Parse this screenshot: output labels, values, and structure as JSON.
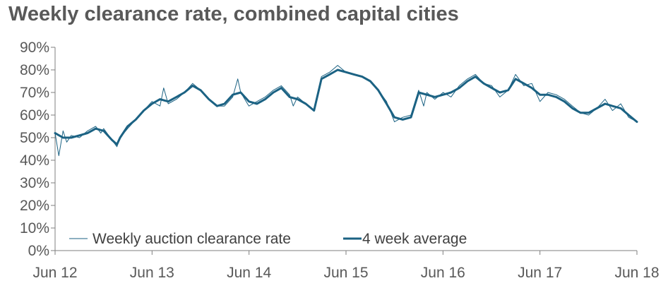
{
  "title": "Weekly clearance rate, combined capital cities",
  "colors": {
    "series": "#1b6283",
    "axis": "#7f7f7f",
    "text": "#595959"
  },
  "chart_data": {
    "type": "line",
    "title": "Weekly clearance rate, combined capital cities",
    "xlabel": "",
    "ylabel": "",
    "ylim": [
      0,
      90
    ],
    "y_ticks": [
      "0%",
      "10%",
      "20%",
      "30%",
      "40%",
      "50%",
      "60%",
      "70%",
      "80%",
      "90%"
    ],
    "x_ticks": [
      "Jun 12",
      "Jun 13",
      "Jun 14",
      "Jun 15",
      "Jun 16",
      "Jun 17",
      "Jun 18"
    ],
    "x_range": [
      "2012-06",
      "2018-06"
    ],
    "grid": false,
    "legend": "bottom-left",
    "series": [
      {
        "name": "Weekly auction clearance rate",
        "style": "thin",
        "points": [
          [
            "2012-06",
            52
          ],
          [
            "2012-06-15",
            42
          ],
          [
            "2012-07",
            53
          ],
          [
            "2012-07-15",
            48
          ],
          [
            "2012-08",
            51
          ],
          [
            "2012-09",
            50
          ],
          [
            "2012-10",
            53
          ],
          [
            "2012-11",
            55
          ],
          [
            "2012-11-20",
            52
          ],
          [
            "2012-12",
            54
          ],
          [
            "2013-01",
            49
          ],
          [
            "2013-01-20",
            46
          ],
          [
            "2013-02",
            50
          ],
          [
            "2013-03",
            54
          ],
          [
            "2013-04",
            58
          ],
          [
            "2013-05",
            62
          ],
          [
            "2013-06",
            66
          ],
          [
            "2013-07",
            64
          ],
          [
            "2013-07-15",
            72
          ],
          [
            "2013-08",
            65
          ],
          [
            "2013-09",
            67
          ],
          [
            "2013-10",
            70
          ],
          [
            "2013-11",
            74
          ],
          [
            "2013-12",
            71
          ],
          [
            "2014-01",
            67
          ],
          [
            "2014-02",
            64
          ],
          [
            "2014-03",
            64
          ],
          [
            "2014-04",
            68
          ],
          [
            "2014-04-20",
            76
          ],
          [
            "2014-05",
            70
          ],
          [
            "2014-06",
            64
          ],
          [
            "2014-07",
            66
          ],
          [
            "2014-08",
            68
          ],
          [
            "2014-09",
            71
          ],
          [
            "2014-10",
            73
          ],
          [
            "2014-11",
            69
          ],
          [
            "2014-11-15",
            64
          ],
          [
            "2014-12",
            68
          ],
          [
            "2015-01",
            65
          ],
          [
            "2015-02",
            62
          ],
          [
            "2015-03",
            77
          ],
          [
            "2015-04",
            79
          ],
          [
            "2015-05",
            82
          ],
          [
            "2015-06",
            79
          ],
          [
            "2015-07",
            78
          ],
          [
            "2015-08",
            77
          ],
          [
            "2015-09",
            75
          ],
          [
            "2015-10",
            71
          ],
          [
            "2015-11",
            66
          ],
          [
            "2015-12",
            57
          ],
          [
            "2016-01",
            59
          ],
          [
            "2016-02",
            60
          ],
          [
            "2016-03",
            71
          ],
          [
            "2016-03-20",
            64
          ],
          [
            "2016-04",
            70
          ],
          [
            "2016-05",
            67
          ],
          [
            "2016-06",
            70
          ],
          [
            "2016-07",
            68
          ],
          [
            "2016-08",
            73
          ],
          [
            "2016-09",
            76
          ],
          [
            "2016-10",
            78
          ],
          [
            "2016-11",
            74
          ],
          [
            "2016-12",
            73
          ],
          [
            "2017-01",
            68
          ],
          [
            "2017-02",
            71
          ],
          [
            "2017-03",
            78
          ],
          [
            "2017-04",
            73
          ],
          [
            "2017-05",
            74
          ],
          [
            "2017-06",
            66
          ],
          [
            "2017-07",
            70
          ],
          [
            "2017-08",
            69
          ],
          [
            "2017-09",
            67
          ],
          [
            "2017-10",
            64
          ],
          [
            "2017-11",
            61
          ],
          [
            "2017-12",
            60
          ],
          [
            "2018-01",
            63
          ],
          [
            "2018-02",
            67
          ],
          [
            "2018-03",
            62
          ],
          [
            "2018-04",
            65
          ],
          [
            "2018-05",
            59
          ],
          [
            "2018-06",
            57
          ]
        ]
      },
      {
        "name": "4 week average",
        "style": "thick",
        "points": [
          [
            "2012-06",
            52
          ],
          [
            "2012-07",
            50
          ],
          [
            "2012-08",
            50
          ],
          [
            "2012-09",
            51
          ],
          [
            "2012-10",
            52
          ],
          [
            "2012-11",
            54
          ],
          [
            "2012-12",
            53
          ],
          [
            "2013-01",
            49
          ],
          [
            "2013-01-20",
            47
          ],
          [
            "2013-02",
            50
          ],
          [
            "2013-03",
            55
          ],
          [
            "2013-04",
            58
          ],
          [
            "2013-05",
            62
          ],
          [
            "2013-06",
            65
          ],
          [
            "2013-07",
            67
          ],
          [
            "2013-08",
            66
          ],
          [
            "2013-09",
            68
          ],
          [
            "2013-10",
            70
          ],
          [
            "2013-11",
            73
          ],
          [
            "2013-12",
            71
          ],
          [
            "2014-01",
            67
          ],
          [
            "2014-02",
            64
          ],
          [
            "2014-03",
            65
          ],
          [
            "2014-04",
            69
          ],
          [
            "2014-05",
            70
          ],
          [
            "2014-06",
            66
          ],
          [
            "2014-07",
            65
          ],
          [
            "2014-08",
            67
          ],
          [
            "2014-09",
            70
          ],
          [
            "2014-10",
            72
          ],
          [
            "2014-11",
            68
          ],
          [
            "2014-12",
            67
          ],
          [
            "2015-01",
            65
          ],
          [
            "2015-02",
            62
          ],
          [
            "2015-03",
            76
          ],
          [
            "2015-04",
            78
          ],
          [
            "2015-05",
            80
          ],
          [
            "2015-06",
            79
          ],
          [
            "2015-07",
            78
          ],
          [
            "2015-08",
            77
          ],
          [
            "2015-09",
            75
          ],
          [
            "2015-10",
            71
          ],
          [
            "2015-11",
            65
          ],
          [
            "2015-12",
            59
          ],
          [
            "2016-01",
            58
          ],
          [
            "2016-02",
            59
          ],
          [
            "2016-03",
            70
          ],
          [
            "2016-04",
            69
          ],
          [
            "2016-05",
            68
          ],
          [
            "2016-06",
            69
          ],
          [
            "2016-07",
            70
          ],
          [
            "2016-08",
            72
          ],
          [
            "2016-09",
            75
          ],
          [
            "2016-10",
            77
          ],
          [
            "2016-11",
            74
          ],
          [
            "2016-12",
            72
          ],
          [
            "2017-01",
            70
          ],
          [
            "2017-02",
            71
          ],
          [
            "2017-03",
            76
          ],
          [
            "2017-04",
            74
          ],
          [
            "2017-05",
            72
          ],
          [
            "2017-06",
            69
          ],
          [
            "2017-07",
            69
          ],
          [
            "2017-08",
            68
          ],
          [
            "2017-09",
            66
          ],
          [
            "2017-10",
            63
          ],
          [
            "2017-11",
            61
          ],
          [
            "2017-12",
            61
          ],
          [
            "2018-01",
            63
          ],
          [
            "2018-02",
            65
          ],
          [
            "2018-03",
            64
          ],
          [
            "2018-04",
            63
          ],
          [
            "2018-05",
            60
          ],
          [
            "2018-06",
            57
          ]
        ]
      }
    ]
  }
}
